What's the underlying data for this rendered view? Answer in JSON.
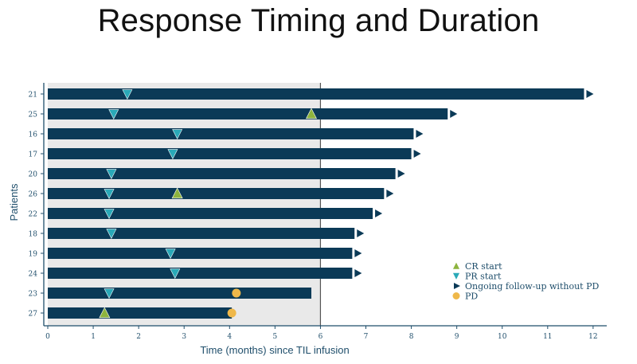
{
  "title": "Response Timing and Duration",
  "colors": {
    "bar": "#0b3a57",
    "shade": "#e9e9e9",
    "cr": "#8db43e",
    "pr": "#2aa9b8",
    "pd": "#efb84a",
    "axis": "#1f4e6b"
  },
  "chart_data": {
    "type": "bar",
    "orientation": "horizontal",
    "title": "Response Timing and Duration",
    "xlabel": "Time (months) since TIL infusion",
    "ylabel": "Patients",
    "xlim": [
      0,
      12.3
    ],
    "xticks": [
      0,
      1,
      2,
      3,
      4,
      5,
      6,
      7,
      8,
      9,
      10,
      11,
      12
    ],
    "shaded_region": [
      0,
      6
    ],
    "reference_line_x": 6,
    "legend_position": "lower-right",
    "legend": [
      {
        "key": "cr",
        "label": "CR start"
      },
      {
        "key": "pr",
        "label": "PR start"
      },
      {
        "key": "ongoing",
        "label": "Ongoing follow-up without PD"
      },
      {
        "key": "pd",
        "label": "PD"
      }
    ],
    "patients": [
      {
        "id": "21",
        "end": 11.8,
        "ongoing": true,
        "pr": 1.75,
        "cr": null,
        "pd": null
      },
      {
        "id": "25",
        "end": 8.8,
        "ongoing": true,
        "pr": 1.45,
        "cr": 5.8,
        "pd": null
      },
      {
        "id": "16",
        "end": 8.05,
        "ongoing": true,
        "pr": 2.85,
        "cr": null,
        "pd": null
      },
      {
        "id": "17",
        "end": 8.0,
        "ongoing": true,
        "pr": 2.75,
        "cr": null,
        "pd": null
      },
      {
        "id": "20",
        "end": 7.65,
        "ongoing": true,
        "pr": 1.4,
        "cr": null,
        "pd": null
      },
      {
        "id": "26",
        "end": 7.4,
        "ongoing": true,
        "pr": 1.35,
        "cr": 2.85,
        "pd": null
      },
      {
        "id": "22",
        "end": 7.15,
        "ongoing": true,
        "pr": 1.35,
        "cr": null,
        "pd": null
      },
      {
        "id": "18",
        "end": 6.75,
        "ongoing": true,
        "pr": 1.4,
        "cr": null,
        "pd": null
      },
      {
        "id": "19",
        "end": 6.7,
        "ongoing": true,
        "pr": 2.7,
        "cr": null,
        "pd": null
      },
      {
        "id": "24",
        "end": 6.7,
        "ongoing": true,
        "pr": 2.8,
        "cr": null,
        "pd": null
      },
      {
        "id": "23",
        "end": 5.8,
        "ongoing": false,
        "pr": 1.35,
        "cr": null,
        "pd": 4.15
      },
      {
        "id": "27",
        "end": 4.05,
        "ongoing": false,
        "pr": null,
        "cr": 1.25,
        "pd": 4.05
      }
    ]
  }
}
